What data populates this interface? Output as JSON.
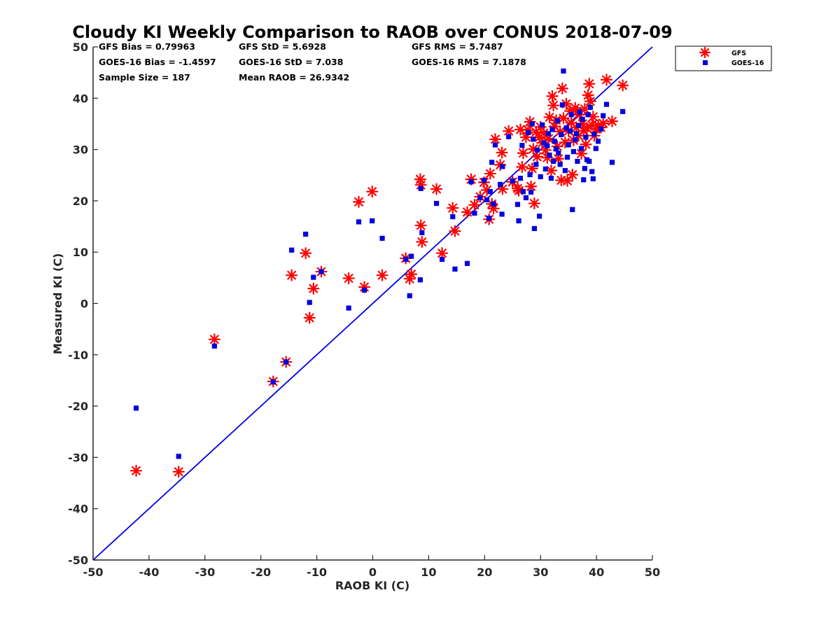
{
  "chart_data": {
    "type": "scatter",
    "title": "Cloudy KI Weekly Comparison to RAOB over CONUS 2018-07-09",
    "xlabel": "RAOB KI (C)",
    "ylabel": "Measured KI (C)",
    "xlim": [
      -50,
      50
    ],
    "ylim": [
      -50,
      50
    ],
    "xticks": [
      "-50",
      "-40",
      "-30",
      "-20",
      "-10",
      "0",
      "10",
      "20",
      "30",
      "40",
      "50"
    ],
    "yticks": [
      "-50",
      "-40",
      "-30",
      "-20",
      "-10",
      "0",
      "10",
      "20",
      "30",
      "40",
      "50"
    ],
    "grid": false,
    "legend_position": "outside-top-right",
    "one_to_one_line": {
      "from": [
        -50,
        -50
      ],
      "to": [
        50,
        50
      ],
      "color": "#0000e0"
    },
    "stats": {
      "row1": [
        "GFS Bias = 0.79963",
        "GFS StD = 5.6928",
        "GFS RMS = 5.7487"
      ],
      "row2": [
        "GOES-16 Bias = -1.4597",
        "GOES-16 StD = 7.038",
        "GOES-16 RMS = 7.1878"
      ],
      "row3": [
        "Sample Size = 187",
        "Mean RAOB = 26.9342"
      ]
    },
    "series": [
      {
        "name": "GFS",
        "marker": "asterisk",
        "color": "#ff0000",
        "points": [
          [
            -42.3,
            -32.6
          ],
          [
            -34.7,
            -32.8
          ],
          [
            -28.3,
            -7.0
          ],
          [
            -17.8,
            -15.2
          ],
          [
            -15.5,
            -11.4
          ],
          [
            -14.5,
            5.5
          ],
          [
            -12.0,
            9.8
          ],
          [
            -11.3,
            -2.8
          ],
          [
            -10.6,
            2.9
          ],
          [
            -9.2,
            6.2
          ],
          [
            -4.3,
            4.9
          ],
          [
            -1.5,
            3.2
          ],
          [
            -2.5,
            19.8
          ],
          [
            -0.1,
            21.8
          ],
          [
            1.7,
            5.5
          ],
          [
            5.9,
            8.8
          ],
          [
            6.6,
            4.8
          ],
          [
            6.9,
            5.7
          ],
          [
            8.5,
            24.2
          ],
          [
            8.6,
            23.1
          ],
          [
            8.6,
            15.2
          ],
          [
            8.8,
            12.0
          ],
          [
            11.4,
            22.3
          ],
          [
            12.4,
            9.8
          ],
          [
            14.3,
            18.6
          ],
          [
            14.7,
            14.1
          ],
          [
            16.9,
            17.8
          ],
          [
            17.6,
            24.2
          ],
          [
            18.2,
            19.2
          ],
          [
            19.2,
            20.8
          ],
          [
            19.9,
            23.6
          ],
          [
            20.4,
            22.1
          ],
          [
            20.8,
            16.4
          ],
          [
            21.0,
            25.3
          ],
          [
            21.3,
            19.4
          ],
          [
            21.6,
            18.5
          ],
          [
            21.9,
            32.0
          ],
          [
            22.8,
            27.0
          ],
          [
            23.1,
            29.4
          ],
          [
            23.2,
            22.3
          ],
          [
            24.3,
            33.6
          ],
          [
            25.0,
            23.7
          ],
          [
            25.9,
            22.4
          ],
          [
            26.1,
            22.0
          ],
          [
            26.4,
            33.9
          ],
          [
            26.7,
            26.6
          ],
          [
            26.9,
            29.3
          ],
          [
            27.4,
            32.4
          ],
          [
            27.8,
            33.8
          ],
          [
            28.1,
            35.4
          ],
          [
            28.3,
            22.8
          ],
          [
            28.5,
            26.3
          ],
          [
            28.7,
            30.1
          ],
          [
            28.9,
            19.5
          ],
          [
            29.2,
            33.4
          ],
          [
            29.4,
            28.6
          ],
          [
            29.8,
            32.4
          ],
          [
            30.0,
            34.4
          ],
          [
            30.3,
            31.3
          ],
          [
            30.6,
            33.2
          ],
          [
            30.9,
            29.9
          ],
          [
            31.2,
            28.4
          ],
          [
            31.4,
            32.1
          ],
          [
            31.6,
            36.3
          ],
          [
            31.9,
            25.9
          ],
          [
            32.1,
            40.4
          ],
          [
            32.3,
            38.6
          ],
          [
            32.5,
            34.5
          ],
          [
            32.8,
            35.7
          ],
          [
            33.0,
            30.6
          ],
          [
            33.2,
            28.2
          ],
          [
            33.5,
            33.5
          ],
          [
            33.7,
            24.0
          ],
          [
            33.9,
            41.9
          ],
          [
            34.1,
            36.1
          ],
          [
            34.4,
            31.4
          ],
          [
            34.6,
            38.9
          ],
          [
            34.8,
            23.9
          ],
          [
            35.0,
            33.6
          ],
          [
            35.3,
            37.5
          ],
          [
            35.5,
            35.2
          ],
          [
            35.7,
            25.1
          ],
          [
            35.9,
            31.8
          ],
          [
            36.2,
            38.1
          ],
          [
            36.4,
            34.3
          ],
          [
            36.6,
            37.4
          ],
          [
            36.8,
            32.7
          ],
          [
            37.0,
            36.8
          ],
          [
            37.3,
            29.2
          ],
          [
            37.5,
            35.0
          ],
          [
            37.7,
            33.6
          ],
          [
            37.9,
            37.9
          ],
          [
            38.1,
            31.0
          ],
          [
            38.3,
            34.2
          ],
          [
            38.5,
            40.6
          ],
          [
            38.7,
            42.8
          ],
          [
            38.9,
            39.4
          ],
          [
            39.2,
            34.8
          ],
          [
            39.4,
            36.4
          ],
          [
            39.6,
            32.7
          ],
          [
            39.9,
            34.0
          ],
          [
            40.3,
            34.7
          ],
          [
            40.8,
            34.3
          ],
          [
            41.2,
            35.1
          ],
          [
            41.8,
            43.6
          ],
          [
            42.8,
            35.5
          ],
          [
            44.7,
            42.5
          ]
        ]
      },
      {
        "name": "GOES-16",
        "marker": "square",
        "color": "#0000e0",
        "points": [
          [
            -42.3,
            -20.4
          ],
          [
            -34.7,
            -29.8
          ],
          [
            -28.3,
            -8.3
          ],
          [
            -17.8,
            -15.3
          ],
          [
            -15.5,
            -11.4
          ],
          [
            -14.5,
            10.4
          ],
          [
            -12.0,
            13.5
          ],
          [
            -11.3,
            0.2
          ],
          [
            -10.6,
            5.1
          ],
          [
            -9.2,
            6.2
          ],
          [
            -4.3,
            -0.9
          ],
          [
            -1.5,
            2.6
          ],
          [
            -2.5,
            15.9
          ],
          [
            -0.1,
            16.1
          ],
          [
            1.7,
            12.7
          ],
          [
            5.9,
            8.6
          ],
          [
            6.6,
            1.5
          ],
          [
            6.9,
            9.2
          ],
          [
            8.5,
            4.6
          ],
          [
            8.6,
            22.4
          ],
          [
            8.8,
            13.8
          ],
          [
            11.4,
            19.5
          ],
          [
            12.4,
            8.6
          ],
          [
            14.3,
            16.9
          ],
          [
            14.7,
            6.7
          ],
          [
            16.9,
            7.8
          ],
          [
            17.6,
            23.7
          ],
          [
            18.2,
            17.6
          ],
          [
            19.2,
            20.6
          ],
          [
            19.9,
            24.0
          ],
          [
            20.4,
            20.2
          ],
          [
            20.8,
            16.6
          ],
          [
            21.0,
            21.8
          ],
          [
            21.3,
            27.5
          ],
          [
            21.6,
            19.4
          ],
          [
            21.9,
            30.9
          ],
          [
            22.8,
            23.2
          ],
          [
            23.1,
            17.4
          ],
          [
            23.2,
            26.7
          ],
          [
            24.3,
            32.5
          ],
          [
            25.0,
            23.9
          ],
          [
            25.9,
            19.3
          ],
          [
            26.1,
            16.1
          ],
          [
            26.4,
            24.4
          ],
          [
            26.7,
            30.8
          ],
          [
            26.9,
            21.8
          ],
          [
            27.4,
            20.6
          ],
          [
            27.8,
            33.3
          ],
          [
            28.1,
            25.1
          ],
          [
            28.3,
            21.7
          ],
          [
            28.5,
            35.0
          ],
          [
            28.7,
            32.0
          ],
          [
            28.9,
            14.6
          ],
          [
            29.2,
            27.1
          ],
          [
            29.4,
            29.9
          ],
          [
            29.8,
            17.0
          ],
          [
            30.0,
            24.7
          ],
          [
            30.3,
            34.8
          ],
          [
            30.6,
            31.3
          ],
          [
            30.9,
            26.2
          ],
          [
            31.2,
            30.7
          ],
          [
            31.4,
            33.1
          ],
          [
            31.6,
            28.9
          ],
          [
            31.9,
            24.4
          ],
          [
            32.1,
            33.9
          ],
          [
            32.3,
            27.7
          ],
          [
            32.5,
            31.6
          ],
          [
            32.8,
            30.1
          ],
          [
            33.0,
            35.6
          ],
          [
            33.2,
            29.3
          ],
          [
            33.5,
            27.1
          ],
          [
            33.7,
            32.9
          ],
          [
            33.9,
            38.7
          ],
          [
            34.1,
            45.3
          ],
          [
            34.4,
            25.9
          ],
          [
            34.6,
            34.2
          ],
          [
            34.8,
            28.5
          ],
          [
            35.0,
            30.9
          ],
          [
            35.3,
            33.6
          ],
          [
            35.5,
            36.8
          ],
          [
            35.7,
            18.3
          ],
          [
            35.9,
            29.6
          ],
          [
            36.2,
            31.9
          ],
          [
            36.4,
            33.1
          ],
          [
            36.6,
            27.7
          ],
          [
            36.8,
            34.7
          ],
          [
            37.0,
            37.3
          ],
          [
            37.3,
            30.2
          ],
          [
            37.5,
            35.9
          ],
          [
            37.7,
            24.1
          ],
          [
            37.9,
            26.3
          ],
          [
            38.1,
            32.4
          ],
          [
            38.3,
            28.0
          ],
          [
            38.5,
            36.8
          ],
          [
            38.7,
            27.7
          ],
          [
            38.9,
            38.2
          ],
          [
            39.2,
            25.7
          ],
          [
            39.4,
            24.3
          ],
          [
            39.6,
            33.0
          ],
          [
            39.9,
            30.2
          ],
          [
            40.3,
            31.6
          ],
          [
            40.8,
            34.0
          ],
          [
            41.2,
            36.6
          ],
          [
            41.8,
            38.8
          ],
          [
            42.8,
            27.5
          ],
          [
            44.7,
            37.4
          ]
        ]
      }
    ]
  }
}
